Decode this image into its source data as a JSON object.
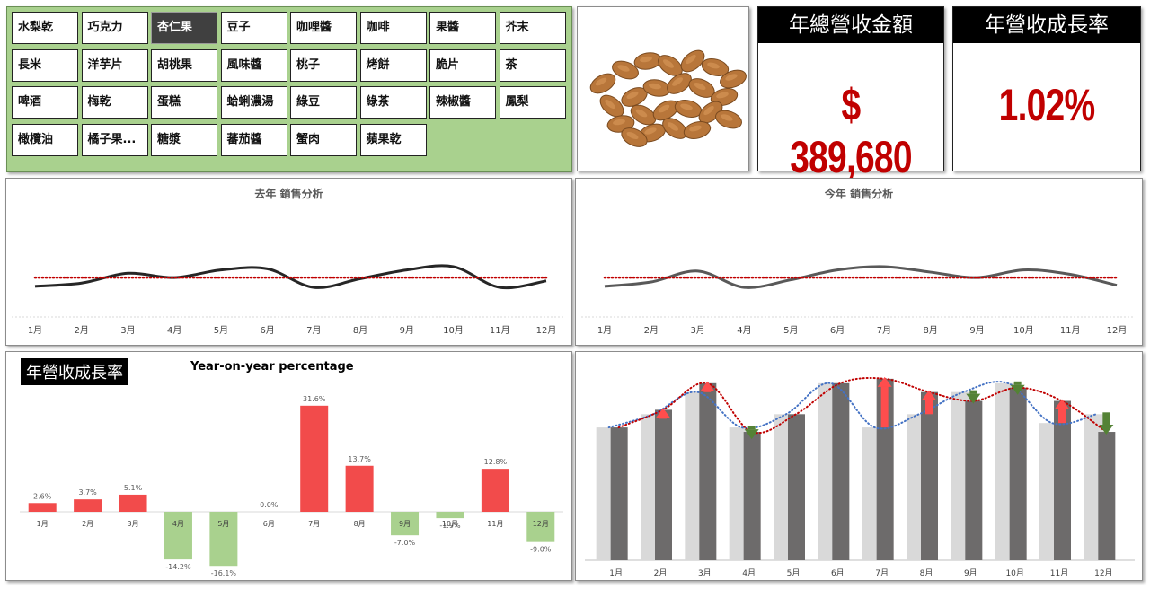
{
  "slicer": {
    "items": [
      "水梨乾",
      "巧克力",
      "杏仁果",
      "豆子",
      "咖哩醬",
      "咖啡",
      "果醬",
      "芥末",
      "長米",
      "洋芋片",
      "胡桃果",
      "風味醬",
      "桃子",
      "烤餅",
      "脆片",
      "茶",
      "啤酒",
      "梅乾",
      "蛋糕",
      "蛤蜊濃湯",
      "綠豆",
      "綠茶",
      "辣椒醬",
      "鳳梨",
      "橄欖油",
      "橘子果...",
      "糖漿",
      "蕃茄醬",
      "蟹肉",
      "蘋果乾"
    ],
    "selected": "杏仁果"
  },
  "product_image": {
    "icon": "almonds-photo"
  },
  "kpi_revenue": {
    "title": "年總營收金額",
    "value": "$ 389,680"
  },
  "kpi_growth": {
    "title": "年營收成長率",
    "value": "1.02%"
  },
  "colors": {
    "red": "#c00000",
    "bar_red": "#f24b4b",
    "bar_green": "#a9d18e",
    "dark_line": "#262626",
    "gray_line": "#595959",
    "light_bar": "#d9d9d9",
    "dark_bar": "#6d6b6b",
    "blue_dot": "#4472c4",
    "arrow_green": "#548235",
    "arrow_red": "#ff4d4d",
    "slicer_bg": "#a9d18e"
  },
  "chart_data": [
    {
      "type": "line",
      "title": "去年 銷售分析",
      "categories": [
        "1月",
        "2月",
        "3月",
        "4月",
        "5月",
        "6月",
        "7月",
        "8月",
        "9月",
        "10月",
        "11月",
        "12月"
      ],
      "series": [
        {
          "values": [
            28,
            31,
            40,
            36,
            43,
            44,
            27,
            35,
            43,
            46,
            27,
            33
          ]
        }
      ],
      "average": 36,
      "ylim": [
        0,
        110
      ]
    },
    {
      "type": "line",
      "title": "今年 銷售分析",
      "categories": [
        "1月",
        "2月",
        "3月",
        "4月",
        "5月",
        "6月",
        "7月",
        "8月",
        "9月",
        "10月",
        "11月",
        "12月"
      ],
      "series": [
        {
          "values": [
            28,
            32,
            42,
            27,
            34,
            43,
            46,
            41,
            36,
            43,
            39,
            29
          ]
        }
      ],
      "average": 36,
      "ylim": [
        0,
        110
      ]
    },
    {
      "type": "bar",
      "title": "Year-on-year percentage",
      "badge": "年營收成長率",
      "categories": [
        "1月",
        "2月",
        "3月",
        "4月",
        "5月",
        "6月",
        "7月",
        "8月",
        "9月",
        "10月",
        "11月",
        "12月"
      ],
      "values": [
        2.6,
        3.7,
        5.1,
        -14.2,
        -16.1,
        0.0,
        31.6,
        13.7,
        -7.0,
        -1.9,
        12.8,
        -9.0
      ],
      "labels": [
        "2.6%",
        "3.7%",
        "5.1%",
        "-14.2%",
        "-16.1%",
        "0.0%",
        "31.6%",
        "13.7%",
        "-7.0%",
        "-1.9%",
        "12.8%",
        "-9.0%"
      ],
      "ylim": [
        -20,
        35
      ]
    },
    {
      "type": "bar",
      "categories": [
        "1月",
        "2月",
        "3月",
        "4月",
        "5月",
        "6月",
        "7月",
        "8月",
        "9月",
        "10月",
        "11月",
        "12月"
      ],
      "series": [
        {
          "values": [
            30,
            33,
            38,
            30,
            33,
            40,
            30,
            33,
            38,
            40,
            31,
            33
          ]
        },
        {
          "values": [
            30,
            34,
            40,
            29,
            33,
            40,
            41,
            38,
            36,
            39,
            36,
            29
          ]
        }
      ],
      "ylim": [
        0,
        50
      ]
    }
  ]
}
